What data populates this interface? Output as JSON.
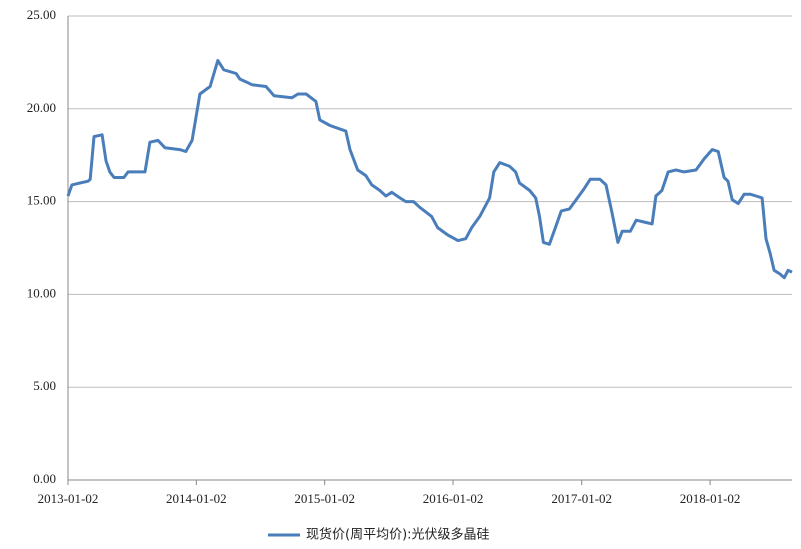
{
  "chart_data": {
    "type": "line",
    "x": [
      "2013-01-02",
      "2013-01-13",
      "2013-02-05",
      "2013-02-28",
      "2013-03-06",
      "2013-03-17",
      "2013-04-09",
      "2013-04-20",
      "2013-05-01",
      "2013-05-13",
      "2013-06-10",
      "2013-06-22",
      "2013-08-09",
      "2013-08-23",
      "2013-09-15",
      "2013-10-05",
      "2013-11-16",
      "2013-12-03",
      "2013-12-21",
      "2014-01-12",
      "2014-02-10",
      "2014-03-04",
      "2014-03-21",
      "2014-04-25",
      "2014-05-06",
      "2014-05-29",
      "2014-06-09",
      "2014-07-19",
      "2014-08-11",
      "2014-10-01",
      "2014-10-18",
      "2014-11-10",
      "2014-12-08",
      "2014-12-19",
      "2015-01-17",
      "2015-03-03",
      "2015-03-15",
      "2015-04-06",
      "2015-04-29",
      "2015-05-16",
      "2015-06-08",
      "2015-06-25",
      "2015-07-12",
      "2015-08-04",
      "2015-08-21",
      "2015-09-12",
      "2015-09-29",
      "2015-11-02",
      "2015-11-19",
      "2015-12-18",
      "2016-01-16",
      "2016-02-07",
      "2016-02-24",
      "2016-03-18",
      "2016-04-04",
      "2016-04-15",
      "2016-04-27",
      "2016-05-14",
      "2016-06-11",
      "2016-06-28",
      "2016-07-09",
      "2016-08-07",
      "2016-08-24",
      "2016-09-04",
      "2016-09-15",
      "2016-10-02",
      "2016-10-19",
      "2016-11-05",
      "2016-11-28",
      "2016-12-21",
      "2017-01-09",
      "2017-01-26",
      "2017-02-23",
      "2017-03-12",
      "2017-03-29",
      "2017-04-15",
      "2017-04-27",
      "2017-05-20",
      "2017-06-06",
      "2017-06-28",
      "2017-07-21",
      "2017-08-01",
      "2017-08-18",
      "2017-09-05",
      "2017-09-27",
      "2017-10-20",
      "2017-11-23",
      "2017-12-16",
      "2018-01-08",
      "2018-01-25",
      "2018-02-11",
      "2018-02-22",
      "2018-03-06",
      "2018-03-23",
      "2018-04-09",
      "2018-04-26",
      "2018-05-13",
      "2018-05-30",
      "2018-06-10",
      "2018-06-22",
      "2018-07-03",
      "2018-07-20",
      "2018-08-01",
      "2018-08-12",
      "2018-08-23"
    ],
    "series": [
      {
        "name": "现货价(周平均价):光伏级多晶硅",
        "color": "#4a7ebb",
        "values": [
          15.3,
          15.9,
          16.0,
          16.1,
          16.2,
          18.5,
          18.6,
          17.2,
          16.6,
          16.3,
          16.3,
          16.6,
          16.6,
          18.2,
          18.3,
          17.9,
          17.8,
          17.7,
          18.3,
          20.8,
          21.2,
          22.6,
          22.1,
          21.9,
          21.6,
          21.4,
          21.3,
          21.2,
          20.7,
          20.6,
          20.8,
          20.8,
          20.4,
          19.4,
          19.1,
          18.8,
          17.8,
          16.7,
          16.4,
          15.9,
          15.6,
          15.3,
          15.5,
          15.2,
          15.0,
          15.0,
          14.7,
          14.2,
          13.6,
          13.2,
          12.9,
          13.0,
          13.6,
          14.2,
          14.8,
          15.2,
          16.6,
          17.1,
          16.9,
          16.6,
          16.0,
          15.6,
          15.2,
          14.2,
          12.8,
          12.7,
          13.6,
          14.5,
          14.6,
          15.2,
          15.7,
          16.2,
          16.2,
          15.9,
          14.4,
          12.8,
          13.4,
          13.4,
          14.0,
          13.9,
          13.8,
          15.3,
          15.6,
          16.6,
          16.7,
          16.6,
          16.7,
          17.3,
          17.8,
          17.7,
          16.3,
          16.1,
          15.1,
          14.9,
          15.4,
          15.4,
          15.3,
          15.2,
          13.0,
          12.2,
          11.3,
          11.1,
          10.9,
          11.3,
          11.2
        ]
      }
    ],
    "xlim": [
      "2013-01-02",
      "2018-08-23"
    ],
    "xticks": [
      "2013-01-02",
      "2014-01-02",
      "2015-01-02",
      "2016-01-02",
      "2017-01-02",
      "2018-01-02"
    ],
    "ylim": [
      0,
      25
    ],
    "yticks": [
      {
        "value": 0,
        "label": "0.00"
      },
      {
        "value": 5,
        "label": "5.00"
      },
      {
        "value": 10,
        "label": "10.00"
      },
      {
        "value": 15,
        "label": "15.00"
      },
      {
        "value": 20,
        "label": "20.00"
      },
      {
        "value": 25,
        "label": "25.00"
      }
    ],
    "grid": true,
    "legend": "bottom"
  }
}
